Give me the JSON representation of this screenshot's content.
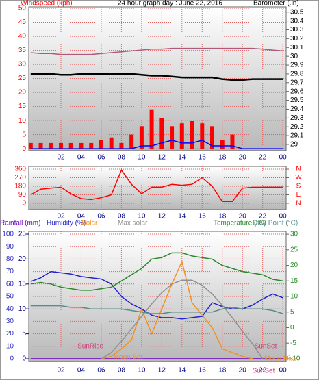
{
  "chart_data": [
    {
      "type": "line",
      "title": "24 hour graph day : June 22, 2016",
      "ylabel": "Windspeed (kph)",
      "y2label": "Barometer (.in)",
      "x": [
        -1,
        0,
        1,
        2,
        3,
        4,
        5,
        6,
        7,
        8,
        9,
        10,
        11,
        12,
        13,
        14,
        15,
        16,
        17,
        18,
        19,
        20,
        21,
        22,
        23,
        24
      ],
      "xlim": [
        -1.19,
        24.33
      ],
      "xticks": [
        {
          "value": 2,
          "label": "02"
        },
        {
          "value": 4,
          "label": "04"
        },
        {
          "value": 6,
          "label": "06"
        },
        {
          "value": 8,
          "label": "08"
        },
        10,
        12,
        14,
        16,
        18,
        20,
        22,
        {
          "value": 24,
          "label": "00"
        }
      ],
      "ylim": [
        -0.7,
        50.5
      ],
      "yticks": [
        0,
        5,
        10,
        15,
        20,
        25,
        30,
        35,
        40,
        45,
        50
      ],
      "y2lim": [
        28.93,
        30.56
      ],
      "y2ticks": [
        29,
        29.1,
        29.2,
        29.3,
        29.4,
        29.5,
        29.6,
        29.7,
        29.8,
        29.9,
        30,
        30.1,
        30.2,
        30.3,
        30.4,
        30.5
      ],
      "grid": true,
      "series": [
        {
          "type": "bar",
          "color": "#ff0000",
          "values": [
            2,
            2,
            2,
            2,
            2,
            2,
            2,
            3,
            4,
            2,
            5,
            8,
            14,
            11,
            8,
            9,
            10,
            9,
            8,
            3,
            5,
            0,
            0,
            0,
            0,
            0
          ]
        },
        {
          "type": "line",
          "color": "#0000ff",
          "values": [
            0,
            0,
            0,
            0,
            0,
            0,
            0,
            0,
            0,
            0,
            0,
            1,
            1,
            2,
            3,
            2,
            2,
            3,
            1,
            1,
            1,
            0,
            0,
            0,
            0,
            0
          ]
        },
        {
          "type": "line",
          "axis": "y2",
          "color": "#b05878",
          "values": [
            30.04,
            30.03,
            30.03,
            30.02,
            30.02,
            30.02,
            30.02,
            30.03,
            30.04,
            30.05,
            30.06,
            30.07,
            30.08,
            30.08,
            30.09,
            30.09,
            30.09,
            30.09,
            30.09,
            30.09,
            30.09,
            30.09,
            30.09,
            30.08,
            30.07,
            30.06
          ]
        },
        {
          "type": "line",
          "axis": "y2",
          "color": "#000000",
          "values": [
            29.8,
            29.8,
            29.8,
            29.79,
            29.79,
            29.8,
            29.8,
            29.8,
            29.8,
            29.8,
            29.8,
            29.79,
            29.78,
            29.78,
            29.77,
            29.76,
            29.76,
            29.76,
            29.76,
            29.74,
            29.73,
            29.73,
            29.74,
            29.74,
            29.74,
            29.74
          ]
        }
      ]
    },
    {
      "type": "line",
      "x": [
        -1,
        0,
        1,
        2,
        3,
        4,
        5,
        6,
        7,
        8,
        9,
        10,
        11,
        12,
        13,
        14,
        15,
        16,
        17,
        18,
        19,
        20,
        21,
        22,
        23,
        24
      ],
      "xlim": [
        -1.19,
        24.33
      ],
      "xticks": [
        {
          "value": 2,
          "label": "02"
        },
        {
          "value": 4,
          "label": "04"
        },
        {
          "value": 6,
          "label": "06"
        },
        {
          "value": 8,
          "label": "08"
        },
        10,
        12,
        14,
        16,
        18,
        20,
        22,
        {
          "value": 24,
          "label": "00"
        }
      ],
      "ylim": [
        -65,
        389
      ],
      "yticks": [
        0,
        90,
        180,
        270,
        360
      ],
      "y2lim": [
        -65,
        389
      ],
      "y2ticks": [
        {
          "value": 360,
          "label": "N"
        },
        {
          "value": 270,
          "label": "W"
        },
        {
          "value": 180,
          "label": "S"
        },
        {
          "value": 90,
          "label": "E"
        },
        {
          "value": 0,
          "label": "N"
        }
      ],
      "grid": true,
      "series": [
        {
          "type": "line",
          "color": "#ff0000",
          "values": [
            90,
            150,
            160,
            170,
            100,
            50,
            40,
            60,
            90,
            350,
            200,
            100,
            170,
            170,
            200,
            190,
            200,
            270,
            180,
            20,
            20,
            160,
            170,
            170,
            170,
            170
          ]
        }
      ]
    },
    {
      "type": "line",
      "x": [
        -1,
        0,
        1,
        2,
        3,
        4,
        5,
        6,
        7,
        8,
        9,
        10,
        11,
        12,
        13,
        14,
        15,
        16,
        17,
        18,
        19,
        20,
        21,
        22,
        23,
        24
      ],
      "xlim": [
        -1.19,
        24.33
      ],
      "xticks": [
        {
          "value": 2,
          "label": "02"
        },
        {
          "value": 4,
          "label": "04"
        },
        {
          "value": 6,
          "label": "06"
        },
        {
          "value": 8,
          "label": "08"
        },
        10,
        12,
        14,
        16,
        18,
        20,
        22,
        {
          "value": 24,
          "label": "00"
        }
      ],
      "ylim": [
        -2.2,
        102.2
      ],
      "yticks": [
        0,
        10,
        20,
        30,
        40,
        50,
        60,
        70,
        80,
        90,
        100
      ],
      "y2lim": [
        -10.9,
        30.9
      ],
      "y2ticks": [
        -10,
        -5,
        0,
        5,
        10,
        15,
        20,
        25,
        30
      ],
      "y3lim": [
        -0.55,
        25.55
      ],
      "y3ticks": [
        0,
        5,
        10,
        15,
        20,
        25
      ],
      "grid": true,
      "series": [
        {
          "name": "Rainfall (mm)",
          "type": "line",
          "axis": "y3",
          "color": "#7000c0",
          "values": [
            0,
            0,
            0,
            0,
            0,
            0,
            0,
            0,
            0,
            0,
            0,
            0,
            0,
            0,
            0,
            0,
            0,
            0,
            0,
            0,
            0,
            0,
            0,
            0,
            0,
            0
          ]
        },
        {
          "name": "Humidity (%)",
          "type": "line",
          "color": "#2020d0",
          "values": [
            62,
            65,
            70,
            69,
            68,
            66,
            65,
            64,
            60,
            50,
            44,
            40,
            35,
            33,
            33,
            32,
            33,
            34,
            45,
            42,
            40,
            40,
            43,
            48,
            52,
            49
          ]
        },
        {
          "name": "Solar",
          "type": "line",
          "color": "#f39020",
          "values": [
            null,
            null,
            null,
            null,
            null,
            null,
            null,
            0,
            2,
            8,
            15,
            40,
            20,
            40,
            60,
            78,
            45,
            35,
            25,
            8,
            5,
            2,
            0,
            null,
            null,
            null
          ]
        },
        {
          "name": "Max solar",
          "type": "line",
          "color": "#909090",
          "values": [
            null,
            null,
            null,
            null,
            null,
            null,
            null,
            0,
            5,
            14,
            24,
            34,
            44,
            53,
            60,
            63,
            63,
            59,
            52,
            43,
            33,
            22,
            12,
            0,
            null,
            null
          ]
        },
        {
          "name": "Temperature (°C)",
          "type": "line",
          "axis": "y2",
          "color": "#2a8a2a",
          "values": [
            14,
            14.5,
            14,
            13,
            12.5,
            12,
            12,
            12.5,
            13,
            15,
            17,
            19,
            22,
            22.5,
            24,
            24,
            23,
            22.5,
            22,
            20,
            19,
            18,
            17.5,
            17,
            15.5,
            15
          ]
        },
        {
          "name": "Dew Point (°C)",
          "type": "line",
          "axis": "y2",
          "color": "#5a8a8a",
          "values": [
            7,
            7,
            7,
            7,
            6.5,
            6.5,
            6,
            6,
            6,
            6,
            5.5,
            5,
            4.5,
            4.5,
            5,
            5,
            5,
            5,
            5,
            6,
            6.5,
            6,
            6,
            6,
            5.5,
            4.5
          ]
        }
      ],
      "annotations": [
        "SunRise",
        "SunSet",
        "Moon Set",
        "Moon Rise",
        "SunSet"
      ]
    }
  ]
}
